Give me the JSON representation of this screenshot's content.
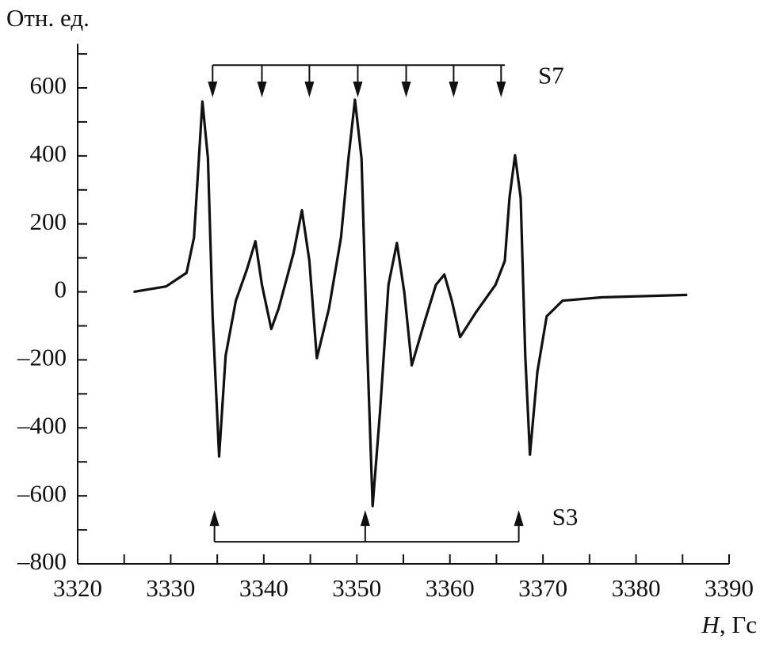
{
  "chart_data": {
    "type": "line",
    "ylabel": "Отн. ед.",
    "xlabel": {
      "symbol": "H",
      "unit": ", Гс"
    },
    "xlim": [
      3320,
      3390
    ],
    "xticks": [
      3320,
      3330,
      3340,
      3350,
      3360,
      3370,
      3380,
      3390
    ],
    "xminorticks": [
      3325,
      3335,
      3345,
      3355,
      3365,
      3375,
      3385
    ],
    "ylim": [
      -800,
      730
    ],
    "yticks": [
      {
        "value": -800,
        "label": "–800"
      },
      {
        "value": -600,
        "label": "–600"
      },
      {
        "value": -400,
        "label": "–400"
      },
      {
        "value": -200,
        "label": "–200"
      },
      0,
      200,
      400,
      600
    ],
    "yminorticks": [
      -700,
      -500,
      -300,
      -100,
      100,
      300,
      500,
      700
    ],
    "color": "#111111",
    "x": [
      3326.0,
      3329.5,
      3331.7,
      3332.5,
      3333.4,
      3334.0,
      3334.5,
      3335.2,
      3335.9,
      3337.0,
      3338.2,
      3339.1,
      3339.8,
      3340.8,
      3341.6,
      3343.2,
      3344.1,
      3344.9,
      3345.7,
      3347.0,
      3348.3,
      3349.1,
      3349.8,
      3350.5,
      3351.0,
      3351.7,
      3352.5,
      3353.4,
      3354.3,
      3355.1,
      3355.9,
      3357.2,
      3358.5,
      3359.4,
      3360.2,
      3361.1,
      3362.8,
      3364.9,
      3365.9,
      3366.4,
      3367.0,
      3367.6,
      3368.1,
      3368.6,
      3369.4,
      3370.4,
      3372.1,
      3376.4,
      3385.5
    ],
    "values": [
      0,
      16,
      56,
      160,
      560,
      393,
      -72,
      -484,
      -188,
      -26,
      67,
      149,
      21,
      -109,
      -49,
      114,
      240,
      91,
      -195,
      -49,
      160,
      393,
      565,
      393,
      -72,
      -630,
      -351,
      21,
      144,
      -2,
      -216,
      -95,
      21,
      51,
      -26,
      -133,
      -60,
      21,
      91,
      277,
      402,
      277,
      -188,
      -479,
      -235,
      -72,
      -26,
      -16,
      -9
    ],
    "annotations": [
      {
        "label": "S7",
        "direction": "down",
        "level": 667,
        "tip": 572,
        "positions": [
          3334.5,
          3339.8,
          3344.9,
          3350.1,
          3355.3,
          3360.4,
          3365.5
        ],
        "span": [
          3334.5,
          3365.9
        ]
      },
      {
        "label": "S3",
        "direction": "up",
        "level": -735,
        "tip": -642,
        "positions": [
          3334.7,
          3350.9,
          3367.4
        ],
        "span": [
          3334.7,
          3367.4
        ]
      }
    ]
  }
}
